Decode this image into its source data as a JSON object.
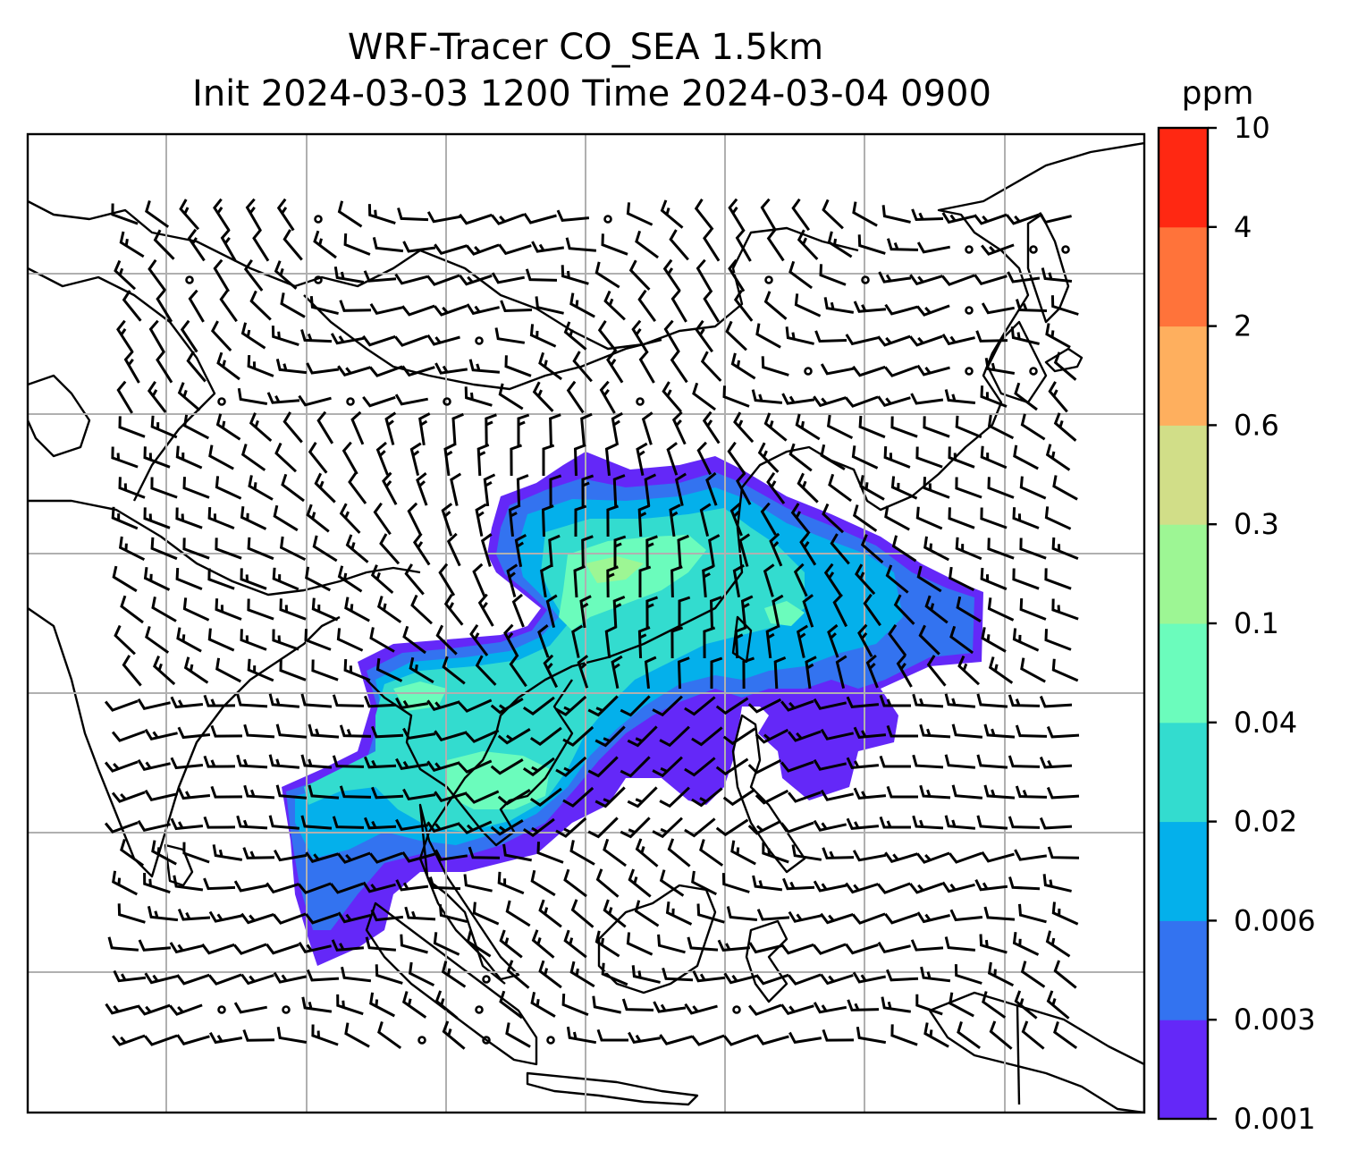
{
  "title": {
    "line1": "WRF-Tracer CO_SEA 1.5km",
    "line2": "Init 2024-03-03 1200 Time 2024-03-04 0900"
  },
  "colorbar": {
    "unit": "ppm",
    "tick_labels": [
      "0.001",
      "0.003",
      "0.006",
      "0.02",
      "0.04",
      "0.1",
      "0.3",
      "0.6",
      "2",
      "4",
      "10"
    ],
    "colors": [
      "#6428f8",
      "#3373f0",
      "#04b0eb",
      "#33dccf",
      "#6bfcbc",
      "#9df694",
      "#d1de88",
      "#feaf5e",
      "#ff733a",
      "#ff2812"
    ]
  },
  "map": {
    "projection_grid": "on",
    "field": "CO_SEA tracer concentration at 1.5km",
    "overlay": "wind barbs",
    "background": "#ffffff",
    "coastline_color": "#000000",
    "grid_color": "#b0b0b0"
  }
}
